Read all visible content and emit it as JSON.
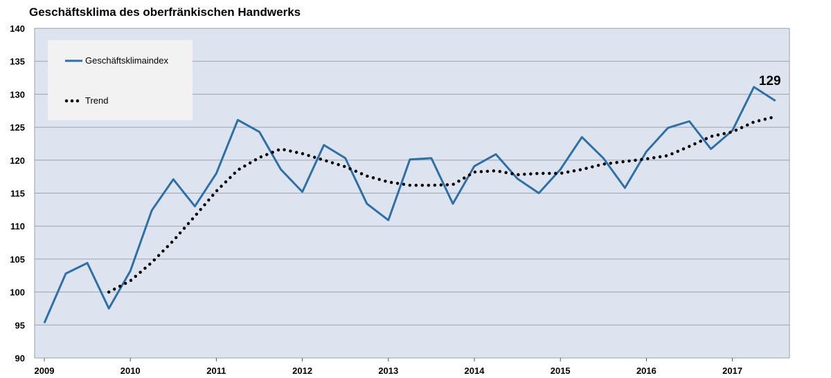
{
  "chart_data": {
    "type": "line",
    "title": "Geschäftsklima des oberfränkischen Handwerks",
    "xlabel": "",
    "ylabel": "",
    "ylim": [
      90,
      140
    ],
    "yticks": [
      "90",
      "95",
      "100",
      "105",
      "110",
      "115",
      "120",
      "125",
      "130",
      "135",
      "140"
    ],
    "xticks": [
      {
        "label": "2009",
        "index": 0
      },
      {
        "label": "2010",
        "index": 4
      },
      {
        "label": "2011",
        "index": 8
      },
      {
        "label": "2012",
        "index": 12
      },
      {
        "label": "2013",
        "index": 16
      },
      {
        "label": "2014",
        "index": 20
      },
      {
        "label": "2015",
        "index": 24
      },
      {
        "label": "2016",
        "index": 28
      },
      {
        "label": "2017",
        "index": 32
      }
    ],
    "grid": true,
    "legend_position": "top-left",
    "series": [
      {
        "name": "Geschäftsklimaindex",
        "style": "solid",
        "color": "#2E6FA8",
        "values": [
          95.3,
          102.8,
          104.4,
          97.5,
          103.2,
          112.4,
          117.1,
          113.0,
          118.0,
          126.1,
          124.3,
          118.6,
          115.2,
          122.3,
          120.3,
          113.4,
          110.9,
          120.1,
          120.3,
          113.4,
          119.1,
          120.9,
          117.2,
          115.0,
          118.6,
          123.5,
          120.3,
          115.8,
          121.3,
          124.9,
          125.9,
          121.7,
          124.5,
          131.1,
          129.0
        ]
      },
      {
        "name": "Trend",
        "style": "dotted",
        "color": "#000000",
        "start_index": 3,
        "values": [
          100.0,
          101.7,
          104.5,
          107.8,
          111.5,
          115.3,
          118.5,
          120.4,
          121.7,
          121.0,
          120.0,
          119.0,
          117.6,
          116.7,
          116.2,
          116.2,
          116.3,
          118.2,
          118.4,
          117.8,
          118.0,
          118.0,
          118.6,
          119.4,
          119.8,
          120.2,
          120.7,
          122.1,
          123.6,
          124.3,
          125.8,
          126.6
        ]
      }
    ],
    "annotations": [
      {
        "text": "129",
        "series": 0,
        "index": 34
      }
    ]
  },
  "colors": {
    "plot_background": "#DDE4EF",
    "grid": "#9AA2AD",
    "legend_background": "#F2F2F2"
  }
}
